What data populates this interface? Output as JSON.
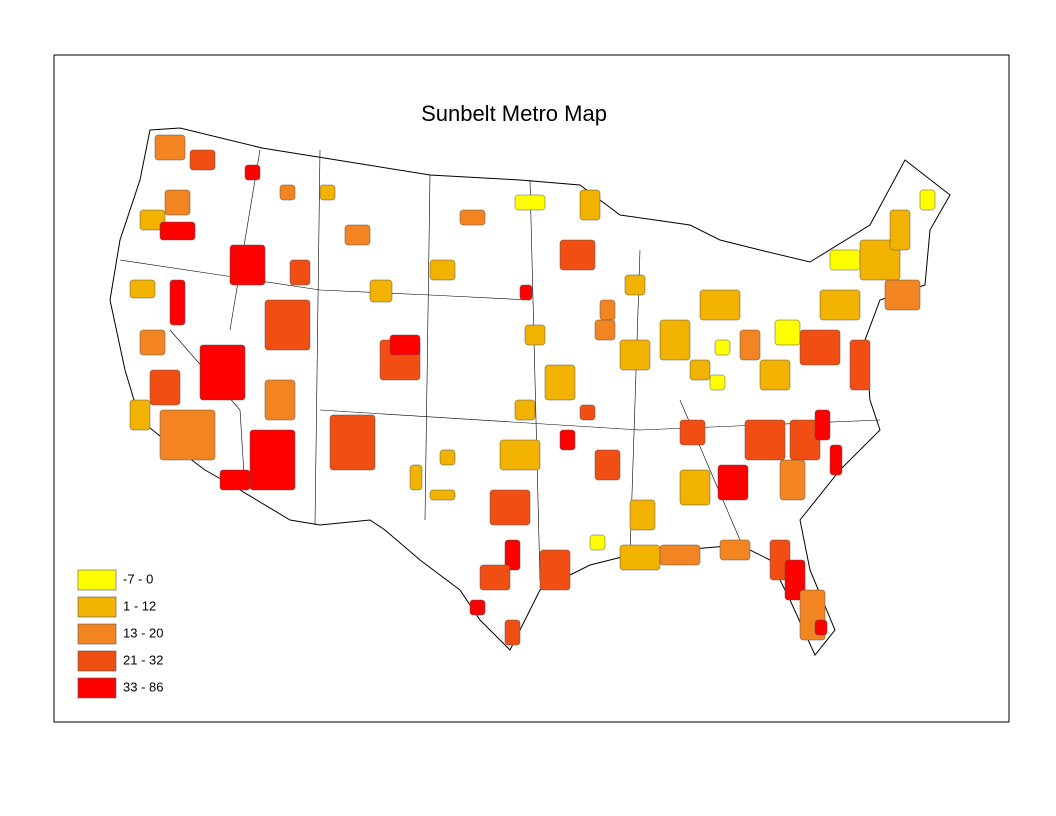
{
  "title": "Sunbelt Metro Map",
  "legend": [
    {
      "label": "-7 - 0",
      "color": "#ffff00"
    },
    {
      "label": "1 - 12",
      "color": "#f2b200"
    },
    {
      "label": "13 - 20",
      "color": "#f28522"
    },
    {
      "label": "21 - 32",
      "color": "#f04e12"
    },
    {
      "label": "33 - 86",
      "color": "#ff0000"
    }
  ]
}
